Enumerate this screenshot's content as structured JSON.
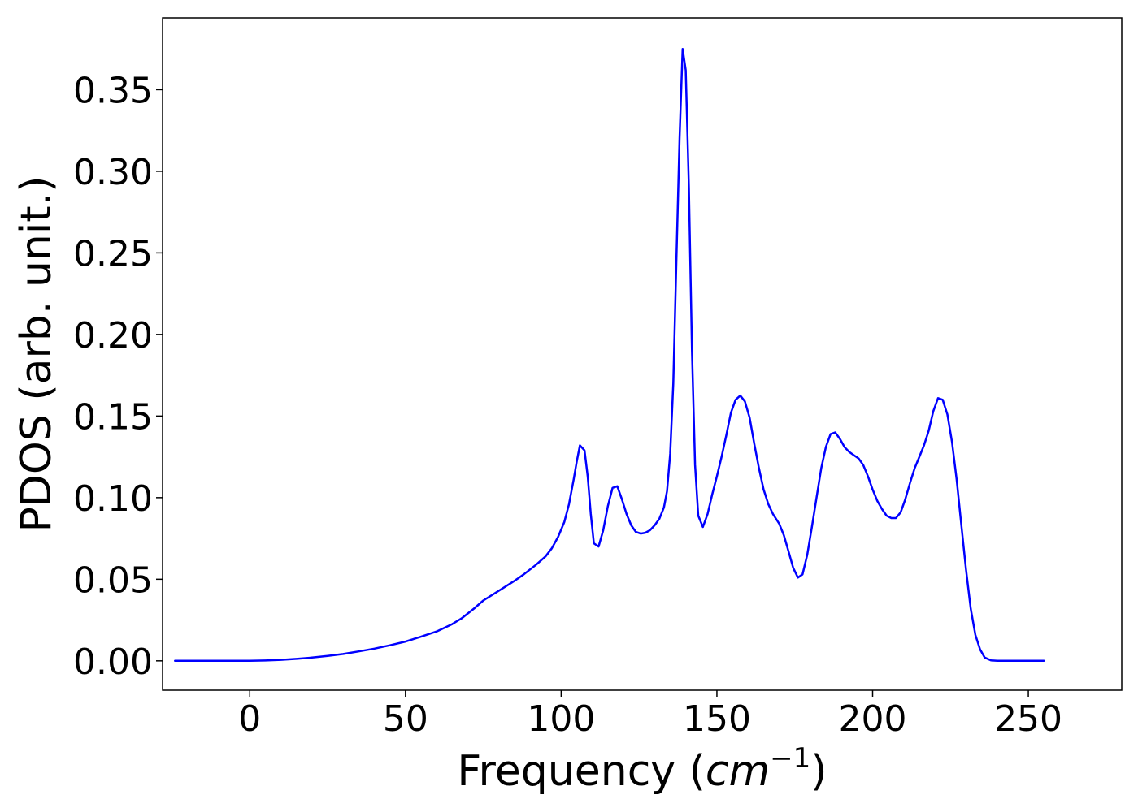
{
  "chart_data": {
    "type": "line",
    "title": "",
    "xlabel": "Frequency",
    "xlabel_unit_base": "cm",
    "xlabel_unit_exp": "−1",
    "ylabel": "PDOS (arb. unit.)",
    "xlim": [
      -28,
      280
    ],
    "ylim": [
      -0.018,
      0.394
    ],
    "xticks": [
      0,
      50,
      100,
      150,
      200,
      250
    ],
    "xtick_labels": [
      "0",
      "50",
      "100",
      "150",
      "200",
      "250"
    ],
    "yticks": [
      0.0,
      0.05,
      0.1,
      0.15,
      0.2,
      0.25,
      0.3,
      0.35
    ],
    "ytick_labels": [
      "0.00",
      "0.05",
      "0.10",
      "0.15",
      "0.20",
      "0.25",
      "0.30",
      "0.35"
    ],
    "grid": false,
    "legend": "none",
    "series": [
      {
        "color": "#0000ff",
        "points": [
          [
            -24,
            0.0
          ],
          [
            -10,
            0.0
          ],
          [
            0,
            0.0
          ],
          [
            5,
            0.0002
          ],
          [
            10,
            0.0006
          ],
          [
            15,
            0.0012
          ],
          [
            20,
            0.002
          ],
          [
            25,
            0.003
          ],
          [
            30,
            0.0042
          ],
          [
            35,
            0.0058
          ],
          [
            40,
            0.0075
          ],
          [
            45,
            0.0095
          ],
          [
            50,
            0.0118
          ],
          [
            55,
            0.0148
          ],
          [
            60,
            0.018
          ],
          [
            65,
            0.0225
          ],
          [
            68,
            0.026
          ],
          [
            72,
            0.032
          ],
          [
            75,
            0.037
          ],
          [
            80,
            0.043
          ],
          [
            85,
            0.049
          ],
          [
            88,
            0.053
          ],
          [
            92,
            0.059
          ],
          [
            95,
            0.064
          ],
          [
            97,
            0.069
          ],
          [
            99,
            0.076
          ],
          [
            101,
            0.085
          ],
          [
            102.5,
            0.096
          ],
          [
            104,
            0.111
          ],
          [
            105,
            0.122
          ],
          [
            106,
            0.132
          ],
          [
            107.5,
            0.129
          ],
          [
            108.5,
            0.113
          ],
          [
            109.5,
            0.09
          ],
          [
            110.5,
            0.072
          ],
          [
            112,
            0.07
          ],
          [
            113.5,
            0.08
          ],
          [
            115,
            0.095
          ],
          [
            116.5,
            0.106
          ],
          [
            118,
            0.107
          ],
          [
            119.5,
            0.099
          ],
          [
            121,
            0.09
          ],
          [
            122.5,
            0.083
          ],
          [
            124,
            0.079
          ],
          [
            125.5,
            0.078
          ],
          [
            127,
            0.0785
          ],
          [
            128.5,
            0.08
          ],
          [
            130,
            0.083
          ],
          [
            131.5,
            0.087
          ],
          [
            133,
            0.094
          ],
          [
            134,
            0.104
          ],
          [
            135,
            0.127
          ],
          [
            136,
            0.17
          ],
          [
            137,
            0.245
          ],
          [
            138,
            0.32
          ],
          [
            139,
            0.375
          ],
          [
            140,
            0.362
          ],
          [
            141,
            0.29
          ],
          [
            142,
            0.19
          ],
          [
            143,
            0.12
          ],
          [
            144,
            0.089
          ],
          [
            145.5,
            0.082
          ],
          [
            147,
            0.09
          ],
          [
            148.5,
            0.102
          ],
          [
            150,
            0.113
          ],
          [
            151.5,
            0.125
          ],
          [
            153,
            0.138
          ],
          [
            154.5,
            0.152
          ],
          [
            156,
            0.16
          ],
          [
            157.5,
            0.1625
          ],
          [
            159,
            0.159
          ],
          [
            160.5,
            0.149
          ],
          [
            162,
            0.133
          ],
          [
            163.5,
            0.118
          ],
          [
            165,
            0.105
          ],
          [
            166.5,
            0.096
          ],
          [
            168,
            0.09
          ],
          [
            170,
            0.084
          ],
          [
            171.5,
            0.077
          ],
          [
            173,
            0.067
          ],
          [
            174.5,
            0.057
          ],
          [
            176,
            0.051
          ],
          [
            177.5,
            0.053
          ],
          [
            179,
            0.065
          ],
          [
            180.5,
            0.082
          ],
          [
            182,
            0.1
          ],
          [
            183.5,
            0.118
          ],
          [
            185,
            0.131
          ],
          [
            186.5,
            0.139
          ],
          [
            188,
            0.14
          ],
          [
            189.5,
            0.136
          ],
          [
            191,
            0.131
          ],
          [
            192.5,
            0.128
          ],
          [
            194,
            0.126
          ],
          [
            195.5,
            0.124
          ],
          [
            197,
            0.12
          ],
          [
            198.5,
            0.113
          ],
          [
            200,
            0.105
          ],
          [
            201.5,
            0.098
          ],
          [
            203,
            0.093
          ],
          [
            204.5,
            0.089
          ],
          [
            206,
            0.0875
          ],
          [
            207.5,
            0.0875
          ],
          [
            209,
            0.091
          ],
          [
            210.5,
            0.099
          ],
          [
            212,
            0.109
          ],
          [
            213.5,
            0.118
          ],
          [
            215,
            0.125
          ],
          [
            216.5,
            0.132
          ],
          [
            218,
            0.141
          ],
          [
            219.5,
            0.153
          ],
          [
            221,
            0.161
          ],
          [
            222.5,
            0.16
          ],
          [
            224,
            0.151
          ],
          [
            225.5,
            0.134
          ],
          [
            227,
            0.111
          ],
          [
            228.5,
            0.083
          ],
          [
            230,
            0.056
          ],
          [
            231.5,
            0.032
          ],
          [
            233,
            0.016
          ],
          [
            234.5,
            0.007
          ],
          [
            236,
            0.002
          ],
          [
            238,
            0.0003
          ],
          [
            240,
            0.0
          ],
          [
            255,
            0.0
          ]
        ]
      }
    ]
  }
}
